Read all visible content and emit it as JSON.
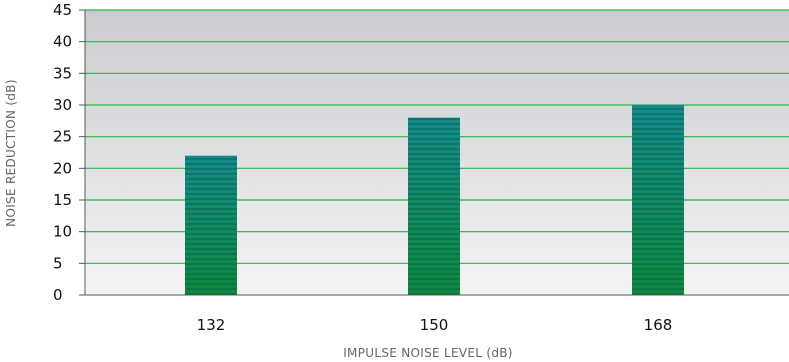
{
  "chart_data": {
    "type": "bar",
    "title": "",
    "xlabel": "IMPULSE NOISE LEVEL (dB)",
    "ylabel": "NOISE REDUCTION (dB)",
    "categories": [
      "132",
      "150",
      "168"
    ],
    "values": [
      22,
      28,
      30
    ],
    "ylim": [
      0,
      45
    ],
    "yticks": [
      0,
      5,
      10,
      15,
      20,
      25,
      30,
      35,
      40,
      45
    ],
    "grid": true,
    "legend": "none",
    "colors": {
      "bar_top": "#138a8e",
      "bar_bottom": "#0d8a3c",
      "bar_stripe": "#0a5a45",
      "gridline": "#2eb24a",
      "plot_bg_top": "#cacccf",
      "plot_bg_bottom": "#f4f4f5",
      "axis": "#555555"
    }
  }
}
